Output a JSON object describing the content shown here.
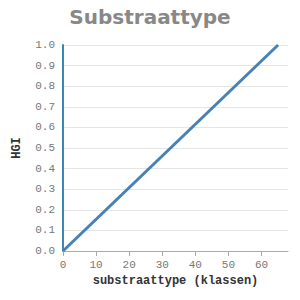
{
  "chart_data": {
    "type": "line",
    "title": "Substraattype",
    "x_label": "substraattype (klassen)",
    "y_label": "HGI",
    "x": [
      0,
      65
    ],
    "values": [
      0,
      1.0
    ],
    "color": "#4682b4",
    "xlim": [
      0,
      68
    ],
    "xticks": [
      0,
      10,
      20,
      30,
      40,
      50,
      60
    ],
    "ylim": [
      0,
      1.0
    ],
    "yticks": [
      {
        "value": 0,
        "label": "0.0"
      },
      0.1,
      0.2,
      0.3,
      0.4,
      0.5,
      0.6,
      0.7,
      0.8,
      0.9,
      {
        "value": 1.0,
        "label": "1.0"
      }
    ],
    "grid": true
  }
}
